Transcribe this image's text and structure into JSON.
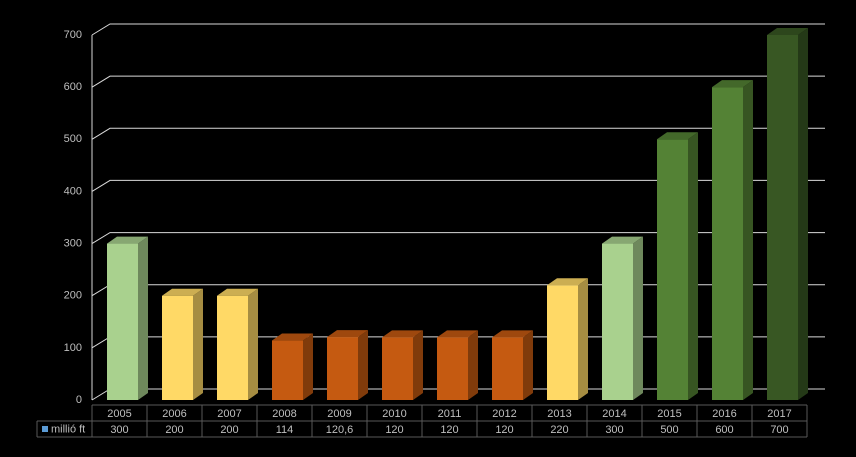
{
  "chart_data": {
    "type": "bar3d",
    "categories": [
      "2005",
      "2006",
      "2007",
      "2008",
      "2009",
      "2010",
      "2011",
      "2012",
      "2013",
      "2014",
      "2015",
      "2016",
      "2017"
    ],
    "series": [
      {
        "name": "millió ft",
        "color": "#5b9bd5",
        "bar_colors": [
          "#a9d18e",
          "#ffd966",
          "#ffd966",
          "#c55a11",
          "#c55a11",
          "#c55a11",
          "#c55a11",
          "#c55a11",
          "#ffd966",
          "#a9d18e",
          "#548235",
          "#548235",
          "#385723"
        ],
        "values": [
          300,
          200,
          200,
          114,
          120.6,
          120,
          120,
          120,
          220,
          300,
          500,
          600,
          700
        ],
        "value_labels": [
          "300",
          "200",
          "200",
          "114",
          "120,6",
          "120",
          "120",
          "120",
          "220",
          "300",
          "500",
          "600",
          "700"
        ]
      }
    ],
    "ylim": [
      0,
      700
    ],
    "yticks": [
      0,
      100,
      200,
      300,
      400,
      500,
      600,
      700
    ],
    "grid": true,
    "data_table": true
  }
}
